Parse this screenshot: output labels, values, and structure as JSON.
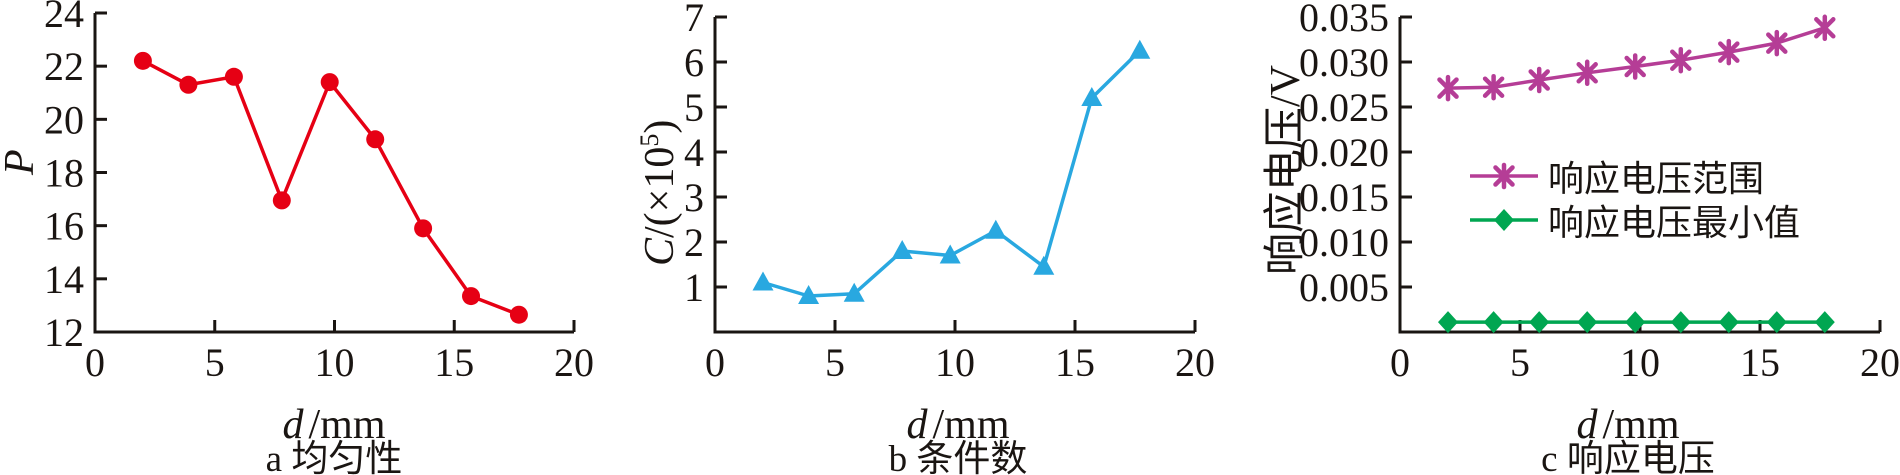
{
  "figure": {
    "background": "#ffffff",
    "axis_color": "#1a1512",
    "x_axis_shared_label": "d/mm"
  },
  "chart_data": [
    {
      "type": "line",
      "caption": "a 均匀性",
      "xlabel": "d/mm",
      "xlabel_parts": {
        "italic": "d",
        "rest": "/mm"
      },
      "ylabel": "P",
      "ylabel_parts": {
        "italic": "P"
      },
      "xlim": [
        0,
        20
      ],
      "ylim": [
        12,
        24
      ],
      "grid": false,
      "xticks": [
        {
          "v": 0,
          "label": "0"
        },
        {
          "v": 5,
          "label": "5"
        },
        {
          "v": 10,
          "label": "10"
        },
        {
          "v": 15,
          "label": "15"
        },
        {
          "v": 20,
          "label": "20"
        }
      ],
      "yticks": [
        {
          "v": 12,
          "label": "12"
        },
        {
          "v": 14,
          "label": "14"
        },
        {
          "v": 16,
          "label": "16"
        },
        {
          "v": 18,
          "label": "18"
        },
        {
          "v": 20,
          "label": "20"
        },
        {
          "v": 22,
          "label": "22"
        },
        {
          "v": 24,
          "label": "24"
        }
      ],
      "x": [
        2,
        3.9,
        5.8,
        7.8,
        9.8,
        11.7,
        13.7,
        15.7,
        17.7
      ],
      "series": [
        {
          "name": "P",
          "color": "#e60014",
          "marker": "circle",
          "values": [
            22.2,
            21.3,
            21.6,
            16.95,
            21.4,
            19.25,
            15.9,
            13.35,
            12.65
          ]
        }
      ]
    },
    {
      "type": "line",
      "caption": "b 条件数",
      "xlabel": "d/mm",
      "xlabel_parts": {
        "italic": "d",
        "rest": "/mm"
      },
      "ylabel": "C/(×10⁵)",
      "ylabel_parts": {
        "italic": "C",
        "pre": "/(×10",
        "sup": "5",
        "post": ")"
      },
      "xlim": [
        0,
        20
      ],
      "ylim": [
        0,
        7
      ],
      "grid": false,
      "xticks": [
        {
          "v": 0,
          "label": "0"
        },
        {
          "v": 5,
          "label": "5"
        },
        {
          "v": 10,
          "label": "10"
        },
        {
          "v": 15,
          "label": "15"
        },
        {
          "v": 20,
          "label": "20"
        }
      ],
      "yticks": [
        {
          "v": 1,
          "label": "1"
        },
        {
          "v": 2,
          "label": "2"
        },
        {
          "v": 3,
          "label": "3"
        },
        {
          "v": 4,
          "label": "4"
        },
        {
          "v": 5,
          "label": "5"
        },
        {
          "v": 6,
          "label": "6"
        },
        {
          "v": 7,
          "label": "7"
        }
      ],
      "x": [
        2,
        3.9,
        5.8,
        7.8,
        9.8,
        11.7,
        13.7,
        15.7,
        17.7
      ],
      "series": [
        {
          "name": "C",
          "color": "#29a8e0",
          "marker": "triangle",
          "values": [
            1.1,
            0.8,
            0.85,
            1.8,
            1.7,
            2.25,
            1.45,
            5.2,
            6.25
          ]
        }
      ]
    },
    {
      "type": "line",
      "caption": "c 响应电压",
      "xlabel": "d/mm",
      "xlabel_parts": {
        "italic": "d",
        "rest": "/mm"
      },
      "ylabel": "响应电压/V",
      "xlim": [
        0,
        20
      ],
      "ylim": [
        0,
        0.035
      ],
      "grid": false,
      "legend": {
        "position": "inside-middle",
        "items": [
          "响应电压范围",
          "响应电压最小值"
        ]
      },
      "xticks": [
        {
          "v": 0,
          "label": "0"
        },
        {
          "v": 5,
          "label": "5"
        },
        {
          "v": 10,
          "label": "10"
        },
        {
          "v": 15,
          "label": "15"
        },
        {
          "v": 20,
          "label": "20"
        }
      ],
      "yticks": [
        {
          "v": 0.005,
          "label": "0.005"
        },
        {
          "v": 0.01,
          "label": "0.010"
        },
        {
          "v": 0.015,
          "label": "0.015"
        },
        {
          "v": 0.02,
          "label": "0.020"
        },
        {
          "v": 0.025,
          "label": "0.025"
        },
        {
          "v": 0.03,
          "label": "0.030"
        },
        {
          "v": 0.035,
          "label": "0.035"
        }
      ],
      "x": [
        2,
        3.9,
        5.8,
        7.8,
        9.8,
        11.7,
        13.7,
        15.7,
        17.7
      ],
      "series": [
        {
          "name": "响应电压范围",
          "color": "#b53d96",
          "marker": "asterisk",
          "values": [
            0.0271,
            0.0272,
            0.028,
            0.0288,
            0.0295,
            0.0302,
            0.0311,
            0.0321,
            0.0338
          ]
        },
        {
          "name": "响应电压最小值",
          "color": "#00a651",
          "marker": "diamond",
          "values": [
            0.0011,
            0.0011,
            0.0011,
            0.0011,
            0.0011,
            0.0011,
            0.0011,
            0.0011,
            0.0011
          ]
        }
      ]
    }
  ]
}
